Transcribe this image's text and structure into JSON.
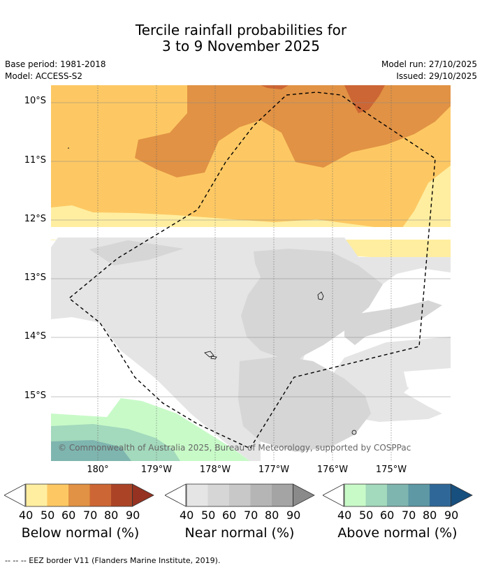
{
  "title_line1": "Tercile rainfall probabilities for",
  "title_line2": "3 to 9 November 2025",
  "base_period": "Base period: 1981-2018",
  "model": "Model: ACCESS-S2",
  "model_run": "Model run: 27/10/2025",
  "issued": "Issued: 29/10/2025",
  "map": {
    "lat_labels": [
      "10°S",
      "11°S",
      "12°S",
      "13°S",
      "14°S",
      "15°S"
    ],
    "lon_labels": [
      "180°",
      "179°W",
      "178°W",
      "177°W",
      "176°W",
      "175°W"
    ],
    "copyright": "© Commonwealth of Australia 2025, Bureau of Meteorology, supported by COSPPac",
    "colors": {
      "below": [
        "#ffeea0",
        "#fdc863",
        "#e19244",
        "#cc6634",
        "#ab4426",
        "#953221"
      ],
      "near": [
        "#e5e5e5",
        "#d6d6d6",
        "#c8c8c8",
        "#b5b5b5",
        "#a4a4a4",
        "#8a8a8a"
      ],
      "above": [
        "#c8fac8",
        "#a3d9bc",
        "#7fb5af",
        "#5d98a4",
        "#2f6898",
        "#174f7e"
      ]
    }
  },
  "colorbars": {
    "ticks": [
      "40",
      "50",
      "60",
      "70",
      "80",
      "90"
    ],
    "below_label": "Below normal (%)",
    "near_label": "Near normal (%)",
    "above_label": "Above normal (%)"
  },
  "footer": "--  --  -- EEZ border V11 (Flanders Marine Institute, 2019)."
}
